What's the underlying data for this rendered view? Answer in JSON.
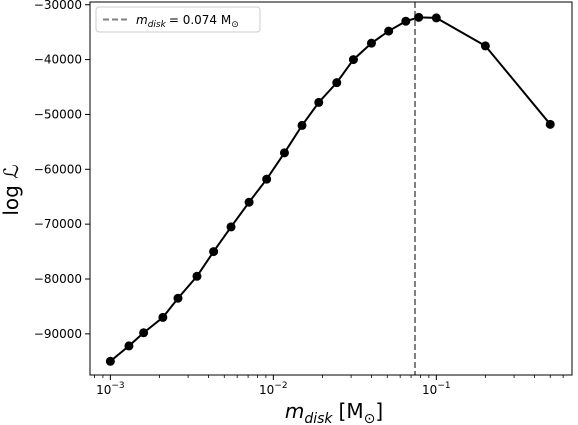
{
  "chart_data": {
    "type": "line",
    "xscale": "log",
    "xlim": [
      0.00075,
      0.68
    ],
    "ylim": [
      -97500,
      -29500
    ],
    "grid": false,
    "x_ticks": [
      {
        "value": 0.001,
        "mantissa": "10",
        "exp": "−3"
      },
      {
        "value": 0.01,
        "mantissa": "10",
        "exp": "−2"
      },
      {
        "value": 0.1,
        "mantissa": "10",
        "exp": "−1"
      }
    ],
    "y_ticks": [
      {
        "value": -90000,
        "label": "−90000"
      },
      {
        "value": -80000,
        "label": "−80000"
      },
      {
        "value": -70000,
        "label": "−70000"
      },
      {
        "value": -60000,
        "label": "−60000"
      },
      {
        "value": -50000,
        "label": "−50000"
      },
      {
        "value": -40000,
        "label": "−40000"
      },
      {
        "value": -30000,
        "label": "−30000"
      }
    ],
    "xlabel": {
      "main": "m",
      "sub": "disk",
      "unit": "[M",
      "unit_sub": "⊙",
      "unit_close": "]"
    },
    "ylabel": {
      "text": "log ",
      "symbol": "ℒ"
    },
    "legend": {
      "placement": "top-left",
      "label_main": "m",
      "label_sub": "disk",
      "label_value": "= 0.074 M",
      "label_unit_sub": "⊙"
    },
    "vline": {
      "x": 0.074,
      "color": "#808080",
      "style": "dashed"
    },
    "series": [
      {
        "color": "#000000",
        "x": [
          0.001,
          0.0013,
          0.0016,
          0.0021,
          0.0026,
          0.0034,
          0.0043,
          0.0055,
          0.0071,
          0.0091,
          0.0117,
          0.015,
          0.019,
          0.0245,
          0.031,
          0.04,
          0.051,
          0.065,
          0.078,
          0.1,
          0.2,
          0.5
        ],
        "y": [
          -95000,
          -92200,
          -89800,
          -87000,
          -83500,
          -79500,
          -75000,
          -70500,
          -66000,
          -61800,
          -57000,
          -52000,
          -47800,
          -44200,
          -40000,
          -37000,
          -34800,
          -33000,
          -32300,
          -32400,
          -37500,
          -51800
        ]
      }
    ]
  }
}
